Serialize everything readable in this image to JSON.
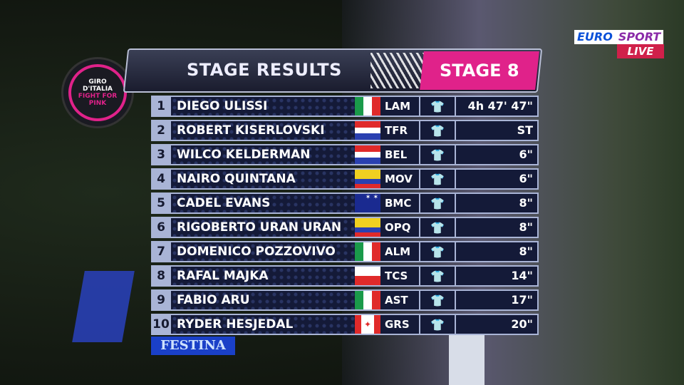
{
  "broadcaster": {
    "name_part1": "EURO",
    "name_part2": "SPORT",
    "live": "LIVE"
  },
  "logo": {
    "line1": "GIRO",
    "line2": "D'ITALIA",
    "line3": "FIGHT FOR",
    "line4": "PINK"
  },
  "header": {
    "title": "STAGE RESULTS",
    "stage": "STAGE 8"
  },
  "results": [
    {
      "pos": "1",
      "name": "DIEGO ULISSI",
      "flag": "italy",
      "team": "LAM",
      "time": "4h 47' 47\""
    },
    {
      "pos": "2",
      "name": "ROBERT KISERLOVSKI",
      "flag": "croatia",
      "team": "TFR",
      "time": "ST"
    },
    {
      "pos": "3",
      "name": "WILCO KELDERMAN",
      "flag": "netherlands",
      "team": "BEL",
      "time": "6\""
    },
    {
      "pos": "4",
      "name": "NAIRO QUINTANA",
      "flag": "colombia",
      "team": "MOV",
      "time": "6\""
    },
    {
      "pos": "5",
      "name": "CADEL EVANS",
      "flag": "australia",
      "team": "BMC",
      "time": "8\""
    },
    {
      "pos": "6",
      "name": "RIGOBERTO URAN URAN",
      "flag": "colombia",
      "team": "OPQ",
      "time": "8\""
    },
    {
      "pos": "7",
      "name": "DOMENICO POZZOVIVO",
      "flag": "italy",
      "team": "ALM",
      "time": "8\""
    },
    {
      "pos": "8",
      "name": "RAFAL MAJKA",
      "flag": "poland",
      "team": "TCS",
      "time": "14\""
    },
    {
      "pos": "9",
      "name": "FABIO ARU",
      "flag": "italy",
      "team": "AST",
      "time": "17\""
    },
    {
      "pos": "10",
      "name": "RYDER HESJEDAL",
      "flag": "canada",
      "team": "GRS",
      "time": "20\""
    }
  ],
  "sponsor": "FESTINA",
  "colors": {
    "accent_pink": "#e0228a",
    "panel_navy": "#141a38",
    "row_frame": "#a9b4d6"
  }
}
